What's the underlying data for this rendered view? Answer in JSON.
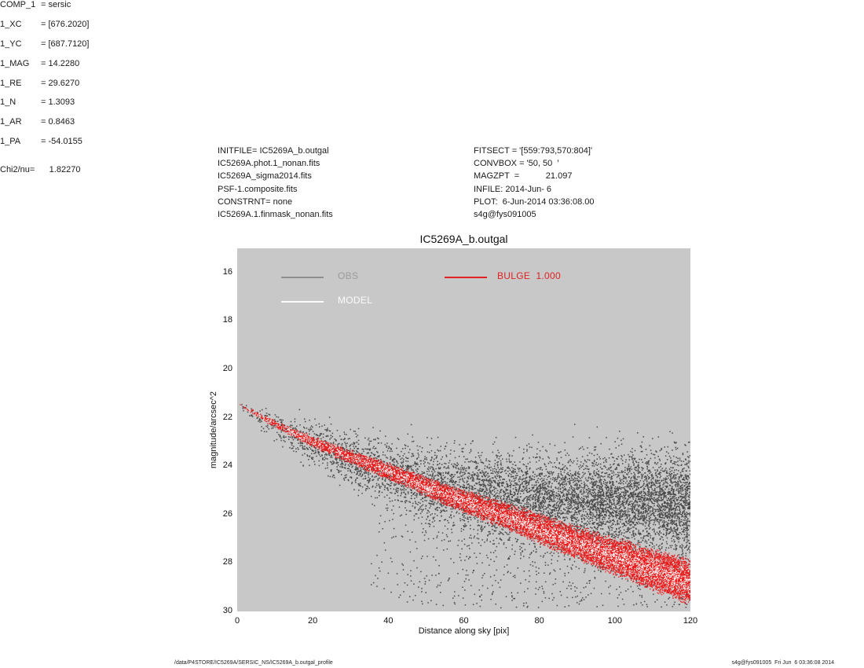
{
  "header_blocks": {
    "left": {
      "lines": [
        "INITFILE= IC5269A_b.outgal",
        "IC5269A.phot.1_nonan.fits",
        "IC5269A_sigma2014.fits",
        "PSF-1.composite.fits",
        "CONSTRNT= none",
        "IC5269A.1.finmask_nonan.fits"
      ]
    },
    "mid": {
      "lines": [
        "FITSECT = '[559:793,570:804]'",
        "CONVBOX = '50, 50  '",
        "MAGZPT  =           21.097",
        "INFILE: 2014-Jun- 6",
        "PLOT:  6-Jun-2014 03:36:08.00",
        "s4g@fys091005"
      ]
    },
    "right": {
      "params": [
        {
          "name": "COMP_1",
          "val": "= sersic"
        },
        {
          "name": "1_XC",
          "val": "= [676.2020]"
        },
        {
          "name": "1_YC",
          "val": "= [687.7120]"
        },
        {
          "name": "1_MAG",
          "val": "= 14.2280"
        },
        {
          "name": "1_RE",
          "val": "= 29.6270"
        },
        {
          "name": "1_N",
          "val": "= 1.3093"
        },
        {
          "name": "1_AR",
          "val": "= 0.8463"
        },
        {
          "name": "1_PA",
          "val": "= -54.0155"
        }
      ],
      "chi2": "Chi2/nu=      1.82270"
    }
  },
  "chart_data": {
    "type": "scatter",
    "title": "IC5269A_b.outgal",
    "xlabel": "Distance along sky [pix]",
    "ylabel": "magnitude/arcsec^2",
    "xlim": [
      0,
      120
    ],
    "ylim": [
      30,
      15
    ],
    "x_ticks": [
      0,
      20,
      40,
      60,
      80,
      100,
      120
    ],
    "y_ticks": [
      16,
      18,
      20,
      22,
      24,
      26,
      28,
      30
    ],
    "grid": false,
    "plot_bg": "#c8c8c8",
    "legend": [
      {
        "label": "OBS",
        "color": "#9a9a9a",
        "line_color": "#8f8f8f"
      },
      {
        "label": "MODEL",
        "color": "#fbfbfb",
        "line_color": "#fbfbfb"
      },
      {
        "label": "BULGE  1.000",
        "color": "#e12020",
        "line_color": "#e12020"
      }
    ],
    "seed": 20140606,
    "series": [
      {
        "name": "OBS",
        "kind": "observed-scatter",
        "color": "#474747",
        "count": 8000,
        "point_size": 1.5,
        "profile_x": [
          0,
          5,
          10,
          20,
          33,
          45,
          54,
          70,
          88,
          105,
          120
        ],
        "mean_mag": [
          21.4,
          21.9,
          22.3,
          23.1,
          23.9,
          24.5,
          24.9,
          25.2,
          25.35,
          25.4,
          25.45
        ],
        "sigma": [
          0.08,
          0.18,
          0.3,
          0.45,
          0.55,
          0.68,
          0.78,
          0.85,
          0.9,
          0.95,
          1.0
        ],
        "tail": {
          "start_x": 35,
          "fraction": 0.13,
          "depth": 4.8
        }
      },
      {
        "name": "BULGE",
        "kind": "model-band",
        "color": "#ee1a1a",
        "count": 14000,
        "point_size": 1.3,
        "profile_x": [
          0,
          5,
          10,
          20,
          33,
          45,
          54,
          70,
          88,
          105,
          120
        ],
        "mean_mag": [
          21.4,
          21.85,
          22.25,
          23.0,
          23.8,
          24.5,
          25.1,
          26.0,
          27.05,
          28.0,
          28.8
        ],
        "halfwidth": [
          0.06,
          0.09,
          0.12,
          0.2,
          0.27,
          0.32,
          0.37,
          0.47,
          0.58,
          0.7,
          0.8
        ]
      },
      {
        "name": "MODEL",
        "kind": "model-speckle",
        "color": "#ffffff",
        "count": 3000,
        "point_size": 1.1,
        "profile_x": [
          0,
          5,
          10,
          20,
          33,
          45,
          54,
          70,
          88,
          105,
          120
        ],
        "mean_mag": [
          21.4,
          21.85,
          22.25,
          23.0,
          23.8,
          24.5,
          25.1,
          26.0,
          27.05,
          28.0,
          28.8
        ],
        "halfwidth": [
          0.04,
          0.06,
          0.08,
          0.13,
          0.18,
          0.21,
          0.25,
          0.31,
          0.39,
          0.47,
          0.54
        ]
      }
    ]
  },
  "footer": {
    "left": "/data/P4STORE/IC5269A/SERSIC_NS/IC5269A_b.outgal_profile",
    "right": "s4g@fys091005  Fri Jun  6 03:36:08 2014"
  }
}
